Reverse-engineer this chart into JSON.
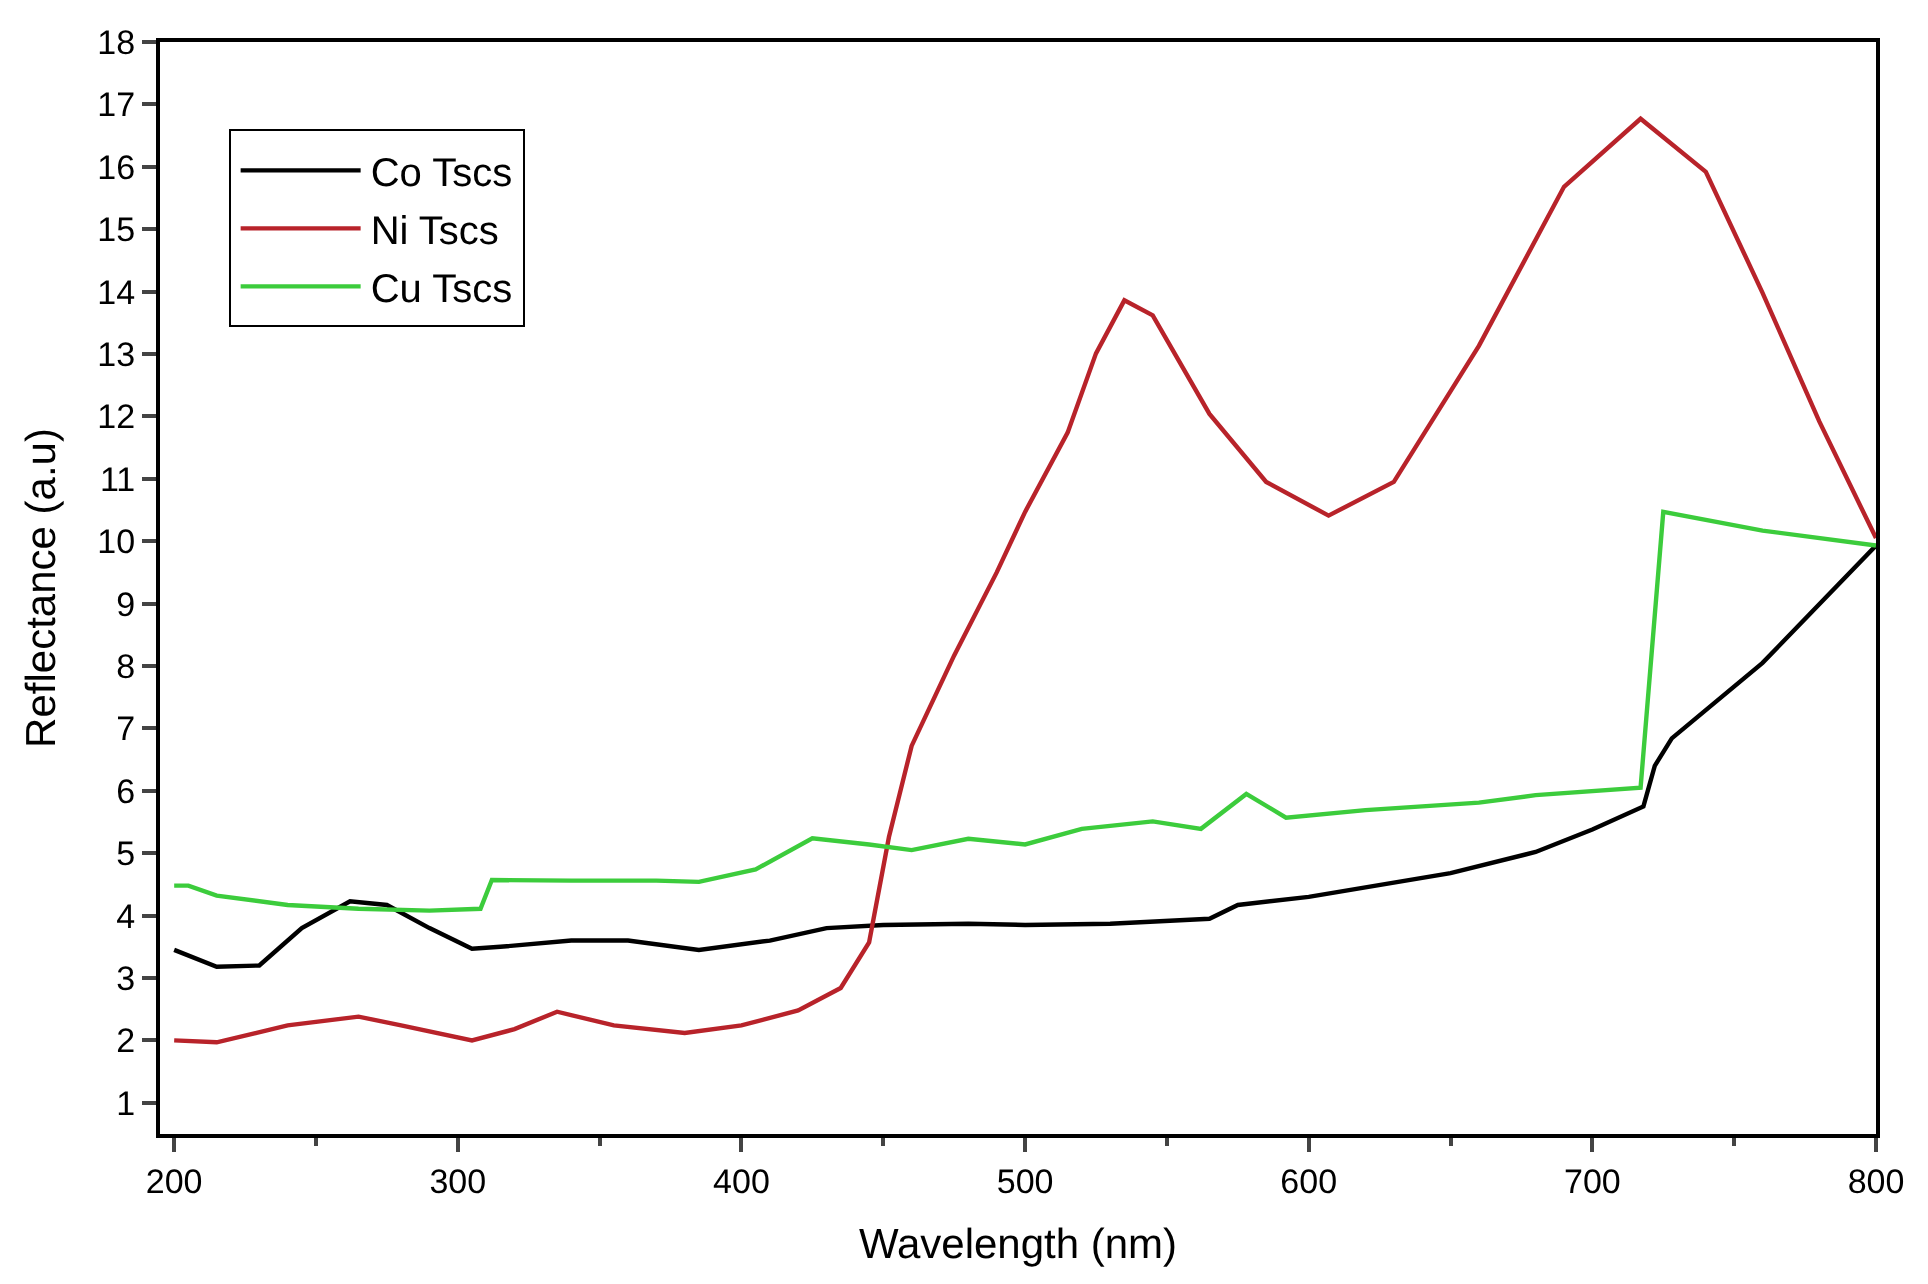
{
  "chart_data": {
    "type": "line",
    "xlabel": "Wavelength (nm)",
    "ylabel": "Reflectance (a.u)",
    "xlim": [
      195,
      800
    ],
    "xticks": [
      200,
      300,
      400,
      500,
      600,
      700,
      800
    ],
    "ylim": [
      0.5,
      18
    ],
    "yticks": [
      1,
      2,
      3,
      4,
      5,
      6,
      7,
      8,
      9,
      10,
      11,
      12,
      13,
      14,
      15,
      16,
      17,
      18
    ],
    "legend": "top left",
    "marker": "none",
    "line_style": "solid",
    "series": [
      {
        "name": "Co Tscs",
        "color": "#000000",
        "x": [
          200,
          215,
          230,
          245,
          262,
          275,
          290,
          305,
          315,
          340,
          360,
          385,
          410,
          430,
          450,
          480,
          500,
          530,
          565,
          575,
          600,
          650,
          680,
          700,
          718,
          722,
          728,
          760,
          800
        ],
        "values": [
          3.45,
          3.18,
          3.2,
          3.8,
          4.23,
          4.17,
          3.8,
          3.47,
          3.5,
          3.6,
          3.6,
          3.45,
          3.6,
          3.8,
          3.85,
          3.87,
          3.85,
          3.87,
          3.95,
          4.17,
          4.3,
          4.68,
          5.02,
          5.38,
          5.75,
          6.4,
          6.84,
          8.05,
          9.93
        ]
      },
      {
        "name": "Ni Tscs",
        "color": "#b8232a",
        "x": [
          200,
          215,
          240,
          265,
          280,
          305,
          320,
          335,
          355,
          380,
          400,
          420,
          435,
          445,
          452,
          460,
          475,
          490,
          500,
          515,
          525,
          535,
          545,
          565,
          585,
          607,
          630,
          660,
          690,
          717,
          740,
          760,
          780,
          800
        ],
        "values": [
          2.0,
          1.97,
          2.24,
          2.38,
          2.24,
          2.0,
          2.18,
          2.46,
          2.24,
          2.12,
          2.24,
          2.48,
          2.84,
          3.57,
          5.26,
          6.72,
          8.17,
          9.5,
          10.47,
          11.74,
          13.01,
          13.86,
          13.62,
          12.04,
          10.95,
          10.41,
          10.95,
          13.13,
          15.68,
          16.77,
          15.92,
          13.98,
          11.92,
          10.05
        ]
      },
      {
        "name": "Cu Tscs",
        "color": "#3ccc3c",
        "x": [
          200,
          205,
          215,
          240,
          265,
          290,
          308,
          312,
          340,
          370,
          385,
          405,
          425,
          445,
          460,
          480,
          500,
          520,
          545,
          562,
          578,
          592,
          620,
          660,
          680,
          717,
          725,
          760,
          800
        ],
        "values": [
          4.48,
          4.48,
          4.32,
          4.17,
          4.11,
          4.08,
          4.11,
          4.57,
          4.56,
          4.56,
          4.54,
          4.74,
          5.24,
          5.14,
          5.05,
          5.23,
          5.14,
          5.39,
          5.51,
          5.39,
          5.95,
          5.57,
          5.69,
          5.81,
          5.93,
          6.05,
          10.47,
          10.17,
          9.93
        ]
      }
    ]
  }
}
